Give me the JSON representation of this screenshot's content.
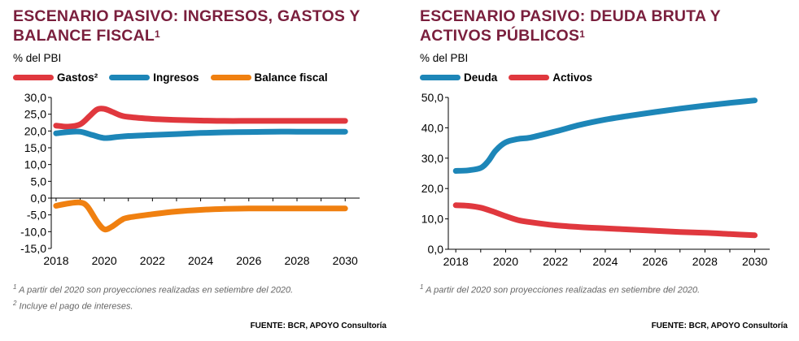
{
  "colors": {
    "title": "#7a1f3d",
    "red": "#e0383e",
    "blue": "#1d86b8",
    "orange": "#f08010",
    "notes": "#666666"
  },
  "left": {
    "title_line1": "ESCENARIO PASIVO: INGRESOS, GASTOS Y",
    "title_line2": "BALANCE FISCAL",
    "title_sup": "1",
    "unit": "% del PBI",
    "legend": [
      {
        "label": "Gastos²",
        "color": "#e0383e"
      },
      {
        "label": "Ingresos",
        "color": "#1d86b8"
      },
      {
        "label": "Balance fiscal",
        "color": "#f08010"
      }
    ],
    "notes": [
      {
        "sup": "1",
        "text": " A partir del 2020 son proyecciones realizadas en setiembre del 2020."
      },
      {
        "sup": "2",
        "text": " Incluye el pago de intereses."
      }
    ],
    "source": "FUENTE: BCR, APOYO Consultoría"
  },
  "right": {
    "title_line1": "ESCENARIO PASIVO: DEUDA BRUTA Y",
    "title_line2": "ACTIVOS PÚBLICOS",
    "title_sup": "1",
    "unit": "% del PBI",
    "legend": [
      {
        "label": "Deuda",
        "color": "#1d86b8"
      },
      {
        "label": "Activos",
        "color": "#e0383e"
      }
    ],
    "notes": [
      {
        "sup": "1",
        "text": " A partir del 2020 son proyecciones realizadas en setiembre del 2020."
      }
    ],
    "source": "FUENTE: BCR, APOYO Consultoría"
  },
  "chart_data": [
    {
      "type": "line",
      "title": "ESCENARIO PASIVO: INGRESOS, GASTOS Y BALANCE FISCAL",
      "ylabel": "% del PBI",
      "xlim": [
        2017.8,
        2030.6
      ],
      "ylim": [
        -15,
        30
      ],
      "xticks": [
        "2018",
        "2020",
        "2022",
        "2024",
        "2026",
        "2028",
        "2030"
      ],
      "yticks": [
        "30,0",
        "25,0",
        "20,0",
        "15,0",
        "10,0",
        "5,0",
        "0,0",
        "-5,0",
        "-10,0",
        "-15,0"
      ],
      "grid": false,
      "legend_position": "top",
      "series": [
        {
          "name": "Gastos²",
          "color": "#e0383e",
          "points": [
            [
              2018,
              21.6
            ],
            [
              2018.5,
              21.3
            ],
            [
              2019,
              22.0
            ],
            [
              2019.4,
              24.5
            ],
            [
              2019.7,
              26.4
            ],
            [
              2020,
              26.6
            ],
            [
              2020.3,
              25.8
            ],
            [
              2020.7,
              24.6
            ],
            [
              2021,
              24.2
            ],
            [
              2022,
              23.6
            ],
            [
              2023,
              23.3
            ],
            [
              2024,
              23.1
            ],
            [
              2025,
              23.0
            ],
            [
              2026,
              23.0
            ],
            [
              2027,
              23.0
            ],
            [
              2028,
              23.0
            ],
            [
              2029,
              23.0
            ],
            [
              2030,
              23.0
            ]
          ]
        },
        {
          "name": "Ingresos",
          "color": "#1d86b8",
          "points": [
            [
              2018,
              19.3
            ],
            [
              2018.5,
              19.7
            ],
            [
              2019,
              19.8
            ],
            [
              2019.5,
              18.8
            ],
            [
              2020,
              17.9
            ],
            [
              2020.5,
              18.2
            ],
            [
              2021,
              18.5
            ],
            [
              2022,
              18.8
            ],
            [
              2023,
              19.1
            ],
            [
              2024,
              19.4
            ],
            [
              2025,
              19.6
            ],
            [
              2026,
              19.7
            ],
            [
              2027,
              19.8
            ],
            [
              2028,
              19.8
            ],
            [
              2029,
              19.8
            ],
            [
              2030,
              19.8
            ]
          ]
        },
        {
          "name": "Balance fiscal",
          "color": "#f08010",
          "points": [
            [
              2018,
              -2.3
            ],
            [
              2018.5,
              -1.6
            ],
            [
              2019,
              -1.3
            ],
            [
              2019.3,
              -2.5
            ],
            [
              2019.7,
              -7.0
            ],
            [
              2020,
              -9.3
            ],
            [
              2020.3,
              -8.6
            ],
            [
              2020.7,
              -6.6
            ],
            [
              2021,
              -5.8
            ],
            [
              2022,
              -4.8
            ],
            [
              2023,
              -4.0
            ],
            [
              2024,
              -3.5
            ],
            [
              2025,
              -3.2
            ],
            [
              2026,
              -3.1
            ],
            [
              2027,
              -3.1
            ],
            [
              2028,
              -3.1
            ],
            [
              2029,
              -3.1
            ],
            [
              2030,
              -3.1
            ]
          ]
        }
      ]
    },
    {
      "type": "line",
      "title": "ESCENARIO PASIVO: DEUDA BRUTA Y ACTIVOS PÚBLICOS",
      "ylabel": "% del PBI",
      "xlim": [
        2017.7,
        2030.6
      ],
      "ylim": [
        0,
        50
      ],
      "xticks": [
        "2018",
        "2020",
        "2022",
        "2024",
        "2026",
        "2028",
        "2030"
      ],
      "yticks": [
        "50,0",
        "40,0",
        "30,0",
        "20,0",
        "10,0",
        "0,0"
      ],
      "grid": false,
      "legend_position": "top",
      "series": [
        {
          "name": "Deuda",
          "color": "#1d86b8",
          "points": [
            [
              2018,
              25.8
            ],
            [
              2018.5,
              26.0
            ],
            [
              2019,
              26.8
            ],
            [
              2019.3,
              29.0
            ],
            [
              2019.6,
              32.5
            ],
            [
              2020,
              35.2
            ],
            [
              2020.5,
              36.3
            ],
            [
              2021,
              36.8
            ],
            [
              2022,
              38.8
            ],
            [
              2023,
              41.0
            ],
            [
              2024,
              42.7
            ],
            [
              2025,
              44.0
            ],
            [
              2026,
              45.2
            ],
            [
              2027,
              46.3
            ],
            [
              2028,
              47.3
            ],
            [
              2029,
              48.2
            ],
            [
              2030,
              49.0
            ]
          ]
        },
        {
          "name": "Activos",
          "color": "#e0383e",
          "points": [
            [
              2018,
              14.5
            ],
            [
              2018.5,
              14.3
            ],
            [
              2019,
              13.7
            ],
            [
              2019.5,
              12.4
            ],
            [
              2020,
              10.9
            ],
            [
              2020.5,
              9.6
            ],
            [
              2021,
              8.9
            ],
            [
              2022,
              7.9
            ],
            [
              2023,
              7.3
            ],
            [
              2024,
              6.9
            ],
            [
              2025,
              6.5
            ],
            [
              2026,
              6.1
            ],
            [
              2027,
              5.7
            ],
            [
              2028,
              5.4
            ],
            [
              2029,
              5.0
            ],
            [
              2030,
              4.6
            ]
          ]
        }
      ]
    }
  ]
}
